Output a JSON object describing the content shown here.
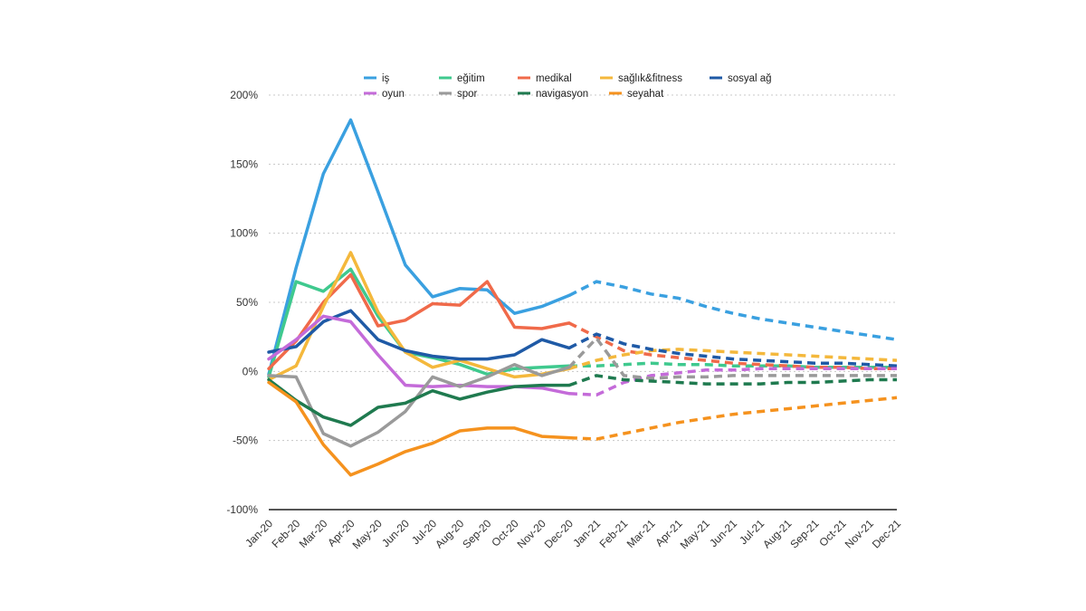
{
  "chart_data": {
    "type": "line",
    "title": "",
    "xlabel": "",
    "ylabel": "",
    "ylim": [
      -100,
      200
    ],
    "yticks": [
      -100,
      -50,
      0,
      50,
      100,
      150,
      200
    ],
    "ytick_labels": [
      "-100%",
      "-50%",
      "0%",
      "50%",
      "100%",
      "150%",
      "200%"
    ],
    "categories": [
      "Jan-20",
      "Feb-20",
      "Mar-20",
      "Apr-20",
      "May-20",
      "Jun-20",
      "Jul-20",
      "Aug-20",
      "Sep-20",
      "Oct-20",
      "Nov-20",
      "Dec-20",
      "Jan-21",
      "Feb-21",
      "Mar-21",
      "Apr-21",
      "May-21",
      "Jun-21",
      "Jul-21",
      "Aug-21",
      "Sep-21",
      "Oct-21",
      "Nov-21",
      "Dec-21"
    ],
    "actual_end_index": 11,
    "note": "Solid lines are actual values through Dec-20; dashed lines are forecasts",
    "series": [
      {
        "name": "iş",
        "color": "#3aa0e0",
        "values": [
          -2,
          75,
          143,
          182,
          130,
          77,
          54,
          60,
          59,
          42,
          47,
          55,
          65,
          61,
          56,
          53,
          47,
          42,
          38,
          35,
          32,
          29,
          26,
          23
        ]
      },
      {
        "name": "eğitim",
        "color": "#3fc98e",
        "values": [
          -4,
          65,
          58,
          74,
          40,
          14,
          10,
          5,
          -2,
          2,
          3,
          4,
          4,
          5,
          6,
          5,
          5,
          4,
          4,
          4,
          3,
          3,
          3,
          3
        ]
      },
      {
        "name": "medikal",
        "color": "#f06a4a",
        "values": [
          2,
          22,
          50,
          70,
          33,
          37,
          49,
          48,
          65,
          32,
          31,
          35,
          25,
          15,
          12,
          10,
          8,
          6,
          5,
          4,
          3,
          3,
          2,
          2
        ]
      },
      {
        "name": "sağlık&fitness",
        "color": "#f4b83c",
        "values": [
          -6,
          4,
          47,
          86,
          43,
          14,
          3,
          8,
          2,
          -4,
          -2,
          2,
          8,
          12,
          15,
          16,
          15,
          14,
          13,
          12,
          11,
          10,
          9,
          8
        ]
      },
      {
        "name": "sosyal ağ",
        "color": "#1f5aa6",
        "values": [
          14,
          18,
          36,
          44,
          23,
          15,
          11,
          9,
          9,
          12,
          23,
          17,
          27,
          20,
          16,
          13,
          11,
          9,
          8,
          7,
          6,
          6,
          5,
          4
        ]
      },
      {
        "name": "oyun",
        "color": "#c46bd9",
        "values": [
          9,
          23,
          40,
          36,
          12,
          -10,
          -11,
          -10,
          -11,
          -11,
          -12,
          -16,
          -17,
          -8,
          -3,
          -1,
          1,
          1,
          2,
          2,
          2,
          2,
          2,
          2
        ]
      },
      {
        "name": "spor",
        "color": "#9a9a9a",
        "values": [
          -3,
          -4,
          -45,
          -54,
          -44,
          -29,
          -4,
          -11,
          -4,
          5,
          -3,
          3,
          24,
          -3,
          -5,
          -4,
          -4,
          -3,
          -3,
          -3,
          -3,
          -3,
          -3,
          -3
        ]
      },
      {
        "name": "navigasyon",
        "color": "#1f7a4f",
        "values": [
          -6,
          -21,
          -33,
          -39,
          -26,
          -23,
          -14,
          -20,
          -15,
          -11,
          -10,
          -10,
          -3,
          -6,
          -7,
          -8,
          -9,
          -9,
          -9,
          -8,
          -8,
          -7,
          -6,
          -6
        ]
      },
      {
        "name": "seyahat",
        "color": "#f5921e",
        "values": [
          -8,
          -22,
          -53,
          -75,
          -67,
          -58,
          -52,
          -43,
          -41,
          -41,
          -47,
          -48,
          -49,
          -45,
          -41,
          -37,
          -34,
          -31,
          -29,
          -27,
          -25,
          -23,
          -21,
          -19
        ]
      }
    ],
    "legend": {
      "placement": "top",
      "rows": [
        [
          "iş",
          "eğitim",
          "medikal",
          "sağlık&fitness",
          "sosyal ağ"
        ],
        [
          "oyun",
          "spor",
          "navigasyon",
          "seyahat"
        ]
      ]
    }
  }
}
